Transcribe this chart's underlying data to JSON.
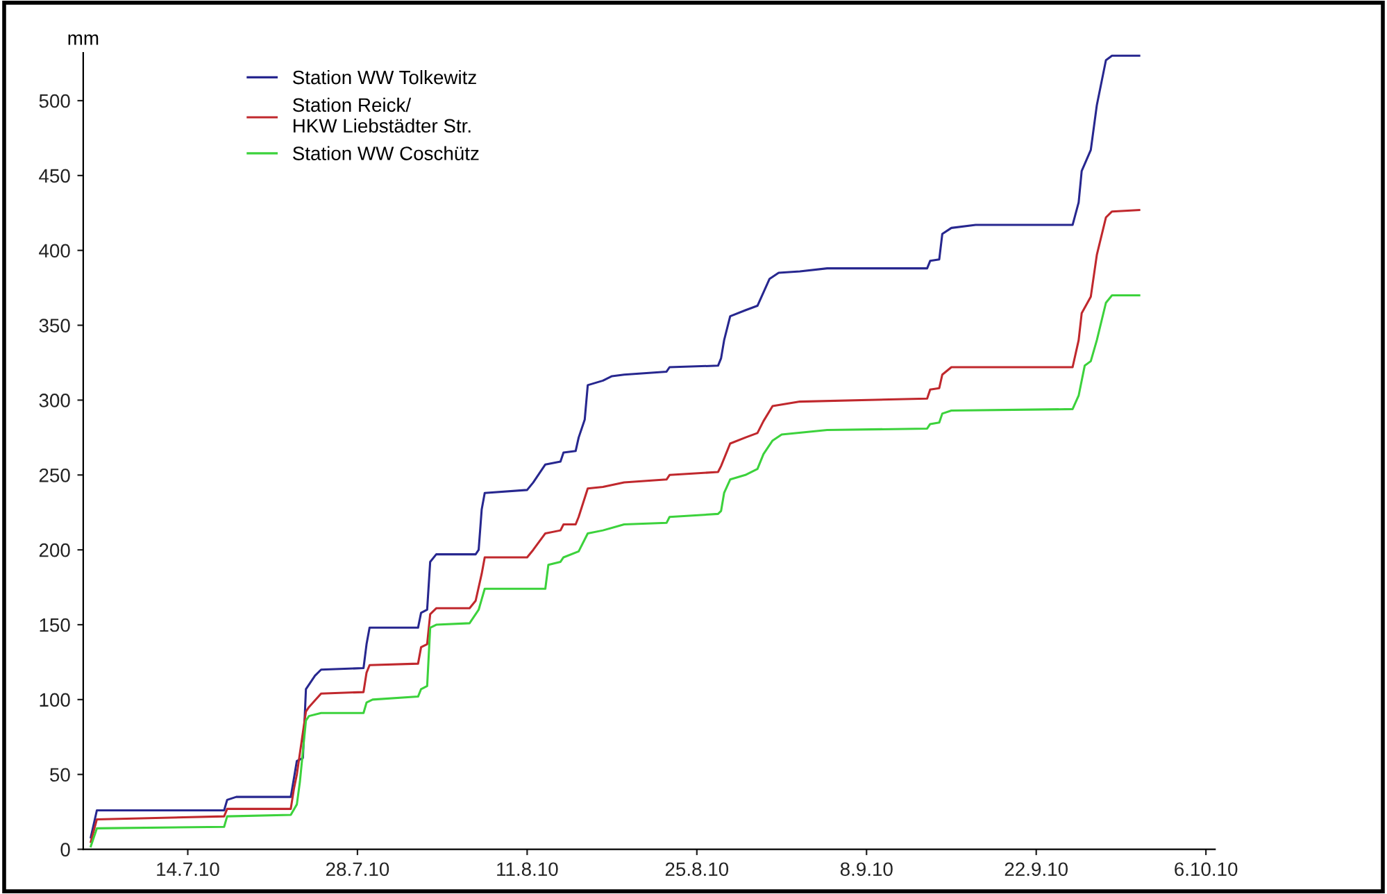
{
  "chart_data": {
    "type": "line",
    "ylabel": "mm",
    "legend": "top left",
    "grid": false,
    "xlim": [
      "2010-07-05T09:00",
      "2010-10-06T18:00"
    ],
    "xticks": [
      {
        "value": "2010-07-14",
        "label": "14.7.10"
      },
      {
        "value": "2010-07-28",
        "label": "28.7.10"
      },
      {
        "value": "2010-08-11",
        "label": "11.8.10"
      },
      {
        "value": "2010-08-25",
        "label": "25.8.10"
      },
      {
        "value": "2010-09-08",
        "label": "8.9.10"
      },
      {
        "value": "2010-09-22",
        "label": "22.9.10"
      },
      {
        "value": "2010-10-06",
        "label": "6.10.10"
      }
    ],
    "ylim": [
      0,
      532
    ],
    "yticks": [
      0,
      50,
      100,
      150,
      200,
      250,
      300,
      350,
      400,
      450,
      500
    ],
    "series": [
      {
        "name": "Station WW Tolkewitz",
        "color": "#27278f",
        "x": [
          "2010-07-06",
          "2010-07-06T12:00",
          "2010-07-17",
          "2010-07-17T06:00",
          "2010-07-18",
          "2010-07-22T12:00",
          "2010-07-22T18:00",
          "2010-07-23",
          "2010-07-23T12:00",
          "2010-07-23T18:00",
          "2010-07-24T12:00",
          "2010-07-25",
          "2010-07-28T12:00",
          "2010-07-28T18:00",
          "2010-07-29",
          "2010-08-02",
          "2010-08-02T06:00",
          "2010-08-02T18:00",
          "2010-08-03",
          "2010-08-03T12:00",
          "2010-08-06T18:00",
          "2010-08-07",
          "2010-08-07T06:00",
          "2010-08-07T12:00",
          "2010-08-11",
          "2010-08-11T12:00",
          "2010-08-12T12:00",
          "2010-08-13T18:00",
          "2010-08-14",
          "2010-08-15",
          "2010-08-15T06:00",
          "2010-08-15T18:00",
          "2010-08-16",
          "2010-08-17T06:00",
          "2010-08-18",
          "2010-08-19",
          "2010-08-22T12:00",
          "2010-08-22T18:00",
          "2010-08-26T18:00",
          "2010-08-27",
          "2010-08-27T06:00",
          "2010-08-27T18:00",
          "2010-08-29",
          "2010-08-30",
          "2010-08-30T12:00",
          "2010-08-31",
          "2010-08-31T18:00",
          "2010-09-02T12:00",
          "2010-09-04T18:00",
          "2010-09-13",
          "2010-09-13T06:00",
          "2010-09-14",
          "2010-09-14T06:00",
          "2010-09-15",
          "2010-09-17",
          "2010-09-25",
          "2010-09-25T12:00",
          "2010-09-25T18:00",
          "2010-09-26T12:00",
          "2010-09-27",
          "2010-09-27T18:00",
          "2010-09-28T06:00",
          "2010-09-30T12:00"
        ],
        "values": [
          8,
          26,
          26,
          33,
          35,
          35,
          47,
          59,
          61,
          107,
          116,
          120,
          121,
          137,
          148,
          148,
          158,
          160,
          192,
          197,
          197,
          200,
          227,
          238,
          240,
          245,
          257,
          259,
          265,
          266,
          275,
          287,
          310,
          313,
          316,
          317,
          319,
          322,
          323,
          328,
          340,
          356,
          360,
          363,
          372,
          381,
          385,
          386,
          388,
          388,
          393,
          394,
          411,
          415,
          417,
          417,
          432,
          453,
          467,
          497,
          527,
          530,
          530
        ]
      },
      {
        "name": "Station Reick/\nHKW Liebstädter Str.",
        "color": "#c0282d",
        "x": [
          "2010-07-06",
          "2010-07-06T12:00",
          "2010-07-17",
          "2010-07-17T06:00",
          "2010-07-22T12:00",
          "2010-07-22T18:00",
          "2010-07-23",
          "2010-07-23T12:00",
          "2010-07-23T18:00",
          "2010-07-24",
          "2010-07-25",
          "2010-07-28T12:00",
          "2010-07-28T18:00",
          "2010-07-29",
          "2010-08-02",
          "2010-08-02T06:00",
          "2010-08-02T18:00",
          "2010-08-03",
          "2010-08-03T12:00",
          "2010-08-06T06:00",
          "2010-08-06T18:00",
          "2010-08-07T06:00",
          "2010-08-07T12:00",
          "2010-08-11",
          "2010-08-11T12:00",
          "2010-08-12T12:00",
          "2010-08-13T18:00",
          "2010-08-14",
          "2010-08-15",
          "2010-08-15T06:00",
          "2010-08-16",
          "2010-08-17T06:00",
          "2010-08-19",
          "2010-08-22T12:00",
          "2010-08-22T18:00",
          "2010-08-26T18:00",
          "2010-08-27",
          "2010-08-27T18:00",
          "2010-08-29",
          "2010-08-30",
          "2010-08-30T12:00",
          "2010-08-31T06:00",
          "2010-09-02T12:00",
          "2010-09-13",
          "2010-09-13T06:00",
          "2010-09-14",
          "2010-09-14T06:00",
          "2010-09-15",
          "2010-09-25",
          "2010-09-25T12:00",
          "2010-09-25T18:00",
          "2010-09-26T12:00",
          "2010-09-27",
          "2010-09-27T18:00",
          "2010-09-28T06:00",
          "2010-09-30T12:00"
        ],
        "values": [
          5,
          20,
          22,
          27,
          27,
          40,
          50,
          78,
          92,
          95,
          104,
          105,
          118,
          123,
          124,
          135,
          137,
          157,
          161,
          161,
          166,
          184,
          195,
          195,
          200,
          211,
          213,
          217,
          217,
          222,
          241,
          242,
          245,
          247,
          250,
          252,
          256,
          271,
          275,
          278,
          286,
          296,
          299,
          301,
          307,
          308,
          317,
          322,
          322,
          340,
          358,
          369,
          397,
          422,
          426,
          427
        ]
      },
      {
        "name": "Station WW Coschütz",
        "color": "#3cd23c",
        "x": [
          "2010-07-06",
          "2010-07-06T12:00",
          "2010-07-17",
          "2010-07-17T06:00",
          "2010-07-22T12:00",
          "2010-07-23",
          "2010-07-23T06:00",
          "2010-07-23T18:00",
          "2010-07-24",
          "2010-07-25",
          "2010-07-28T12:00",
          "2010-07-28T18:00",
          "2010-07-29T06:00",
          "2010-08-02",
          "2010-08-02T06:00",
          "2010-08-02T18:00",
          "2010-08-03",
          "2010-08-03T12:00",
          "2010-08-06T06:00",
          "2010-08-07",
          "2010-08-07T06:00",
          "2010-08-07T12:00",
          "2010-08-12T12:00",
          "2010-08-12T18:00",
          "2010-08-13T18:00",
          "2010-08-14",
          "2010-08-15T06:00",
          "2010-08-16",
          "2010-08-17T06:00",
          "2010-08-19",
          "2010-08-22T12:00",
          "2010-08-22T18:00",
          "2010-08-26T18:00",
          "2010-08-27",
          "2010-08-27T06:00",
          "2010-08-27T18:00",
          "2010-08-29",
          "2010-08-30",
          "2010-08-30T12:00",
          "2010-08-31T06:00",
          "2010-09-01",
          "2010-09-04T18:00",
          "2010-09-13",
          "2010-09-13T06:00",
          "2010-09-14",
          "2010-09-14T06:00",
          "2010-09-15",
          "2010-09-25",
          "2010-09-25T12:00",
          "2010-09-26",
          "2010-09-26T12:00",
          "2010-09-27",
          "2010-09-27T18:00",
          "2010-09-28T06:00",
          "2010-09-30T12:00"
        ],
        "values": [
          2,
          14,
          15,
          22,
          23,
          30,
          45,
          86,
          89,
          91,
          91,
          98,
          100,
          102,
          107,
          109,
          148,
          150,
          151,
          160,
          167,
          174,
          174,
          190,
          192,
          195,
          199,
          211,
          213,
          217,
          218,
          222,
          224,
          226,
          238,
          247,
          250,
          254,
          264,
          273,
          277,
          280,
          281,
          284,
          285,
          291,
          293,
          294,
          303,
          323,
          326,
          340,
          365,
          370,
          370
        ]
      }
    ]
  }
}
